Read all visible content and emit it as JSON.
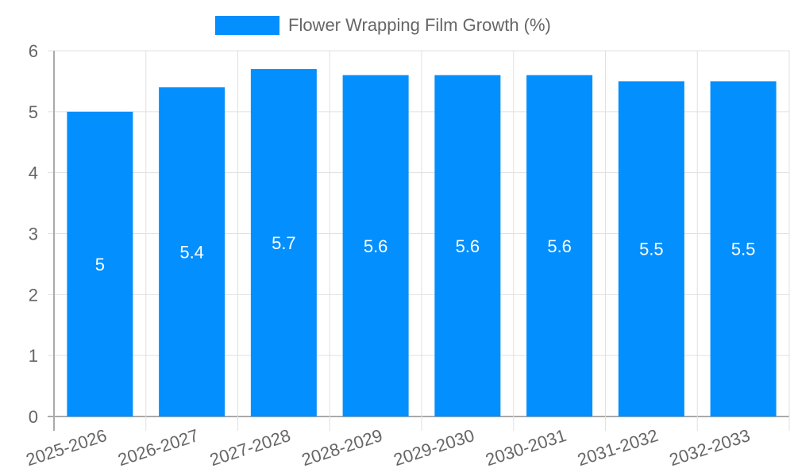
{
  "chart_data": {
    "type": "bar",
    "title": "",
    "xlabel": "",
    "ylabel": "",
    "categories": [
      "2025-2026",
      "2026-2027",
      "2027-2028",
      "2028-2029",
      "2029-2030",
      "2030-2031",
      "2031-2032",
      "2032-2033"
    ],
    "series": [
      {
        "name": "Flower Wrapping Film Growth (%)",
        "values": [
          5,
          5.4,
          5.7,
          5.6,
          5.6,
          5.6,
          5.5,
          5.5
        ],
        "color": "#038ffe"
      }
    ],
    "ylim": [
      0,
      6
    ],
    "yticks": [
      0,
      1,
      2,
      3,
      4,
      5,
      6
    ],
    "grid": true,
    "legend_position": "top",
    "data_labels": [
      "5",
      "5.4",
      "5.7",
      "5.6",
      "5.6",
      "5.6",
      "5.5",
      "5.5"
    ]
  },
  "legend": {
    "label": "Flower Wrapping Film Growth (%)",
    "color": "#038ffe"
  }
}
